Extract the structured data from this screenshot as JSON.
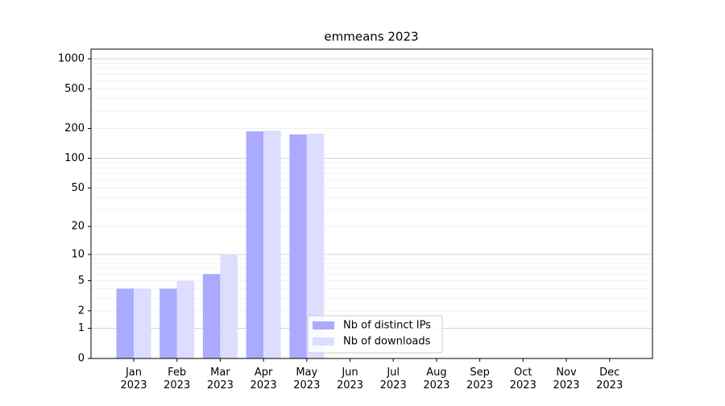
{
  "chart_data": {
    "type": "bar",
    "title": "emmeans 2023",
    "categories": [
      "Jan\n2023",
      "Feb\n2023",
      "Mar\n2023",
      "Apr\n2023",
      "May\n2023",
      "Jun\n2023",
      "Jul\n2023",
      "Aug\n2023",
      "Sep\n2023",
      "Oct\n2023",
      "Nov\n2023",
      "Dec\n2023"
    ],
    "series": [
      {
        "name": "Nb of distinct IPs",
        "color": "#aaaaff",
        "values": [
          4,
          4,
          6,
          187,
          174,
          0,
          0,
          0,
          0,
          0,
          0,
          0
        ]
      },
      {
        "name": "Nb of downloads",
        "color": "#ddddff",
        "values": [
          4,
          5,
          10,
          190,
          177,
          0,
          0,
          0,
          0,
          0,
          0,
          0
        ]
      }
    ],
    "yscale": "log1p",
    "ylim": [
      0,
      1250
    ],
    "yticks": [
      0,
      1,
      2,
      5,
      10,
      20,
      50,
      100,
      200,
      500,
      1000
    ],
    "major_grid": [
      1,
      10,
      100,
      1000
    ],
    "minor_grid": [
      2,
      3,
      4,
      5,
      6,
      7,
      8,
      9,
      20,
      30,
      40,
      50,
      60,
      70,
      80,
      90,
      200,
      300,
      400,
      500,
      600,
      700,
      800,
      900
    ],
    "legend": "lower center"
  }
}
